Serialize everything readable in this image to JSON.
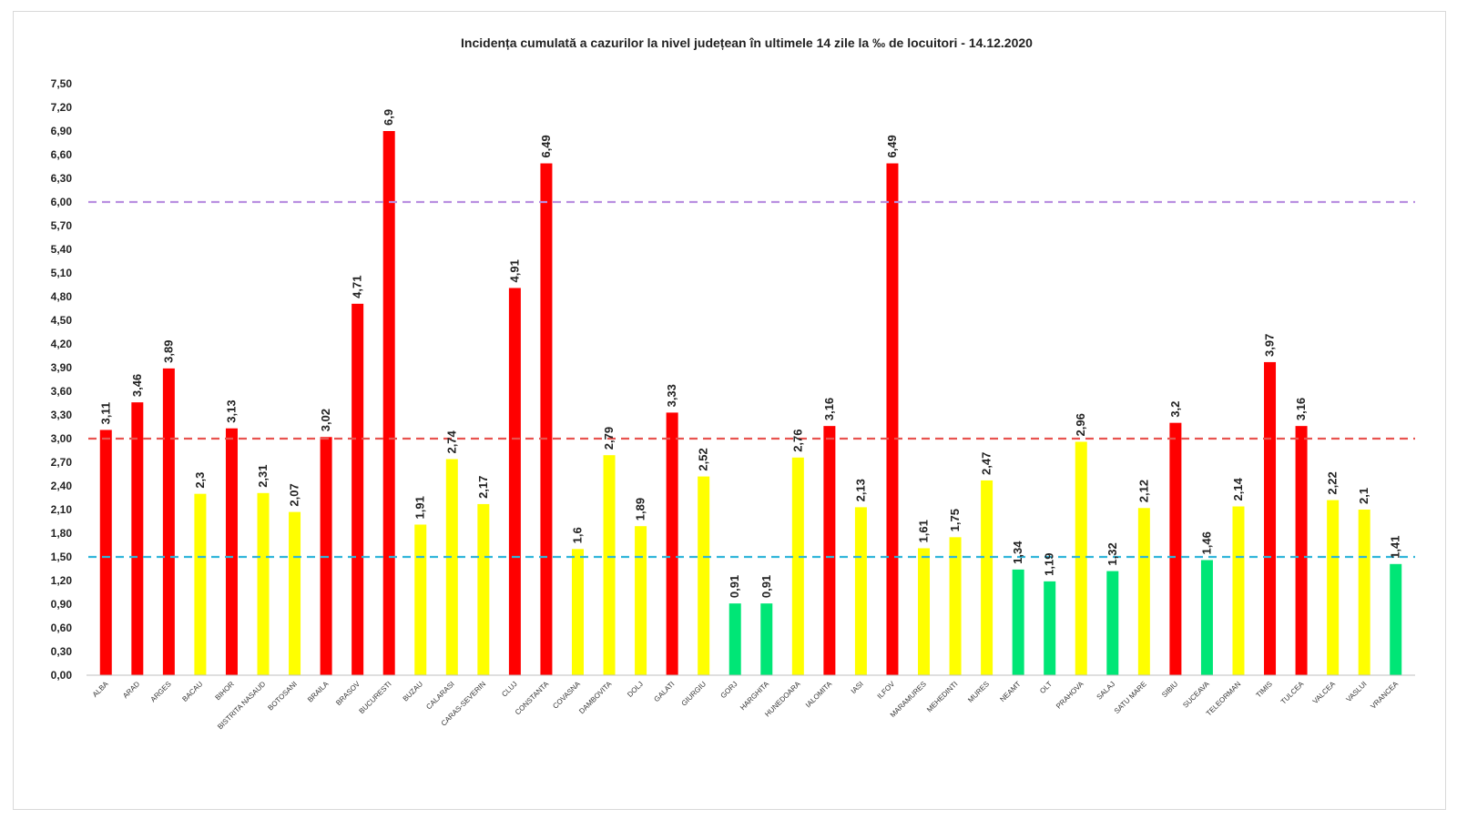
{
  "chart_data": {
    "type": "bar",
    "title": "Incidența cumulată a cazurilor la nivel județean în ultimele 14 zile   la ‰ de locuitori  - 14.12.2020",
    "xlabel": "",
    "ylabel": "",
    "ylim": [
      0,
      7.5
    ],
    "yticks": [
      "0,00",
      "0,30",
      "0,60",
      "0,90",
      "1,20",
      "1,50",
      "1,80",
      "2,10",
      "2,40",
      "2,70",
      "3,00",
      "3,30",
      "3,60",
      "3,90",
      "4,20",
      "4,50",
      "4,80",
      "5,10",
      "5,40",
      "5,70",
      "6,00",
      "6,30",
      "6,60",
      "6,90",
      "7,20",
      "7,50"
    ],
    "grid": false,
    "legend": "none",
    "categories": [
      "ALBA",
      "ARAD",
      "ARGES",
      "BACAU",
      "BIHOR",
      "BISTRITA NASAUD",
      "BOTOSANI",
      "BRAILA",
      "BRASOV",
      "BUCURESTI",
      "BUZAU",
      "CALARASI",
      "CARAS-SEVERIN",
      "CLUJ",
      "CONSTANTA",
      "COVASNA",
      "DAMBOVITA",
      "DOLJ",
      "GALATI",
      "GIURGIU",
      "GORJ",
      "HARGHITA",
      "HUNEDOARA",
      "IALOMITA",
      "IASI",
      "ILFOV",
      "MARAMURES",
      "MEHEDINTI",
      "MURES",
      "NEAMT",
      "OLT",
      "PRAHOVA",
      "SALAJ",
      "SATU MARE",
      "SIBIU",
      "SUCEAVA",
      "TELEORMAN",
      "TIMIS",
      "TULCEA",
      "VALCEA",
      "VASLUI",
      "VRANCEA"
    ],
    "values": [
      3.11,
      3.46,
      3.89,
      2.3,
      3.13,
      2.31,
      2.07,
      3.02,
      4.71,
      6.9,
      1.91,
      2.74,
      2.17,
      4.91,
      6.49,
      1.6,
      2.79,
      1.89,
      3.33,
      2.52,
      0.91,
      0.91,
      2.76,
      3.16,
      2.13,
      6.49,
      1.61,
      1.75,
      2.47,
      1.34,
      1.19,
      2.96,
      1.32,
      2.12,
      3.2,
      1.46,
      2.14,
      3.97,
      3.16,
      2.22,
      2.1,
      1.41
    ],
    "data_labels": [
      "3,11",
      "3,46",
      "3,89",
      "2,3",
      "3,13",
      "2,31",
      "2,07",
      "3,02",
      "4,71",
      "6,9",
      "1,91",
      "2,74",
      "2,17",
      "4,91",
      "6,49",
      "1,6",
      "2,79",
      "1,89",
      "3,33",
      "2,52",
      "0,91",
      "0,91",
      "2,76",
      "3,16",
      "2,13",
      "6,49",
      "1,61",
      "1,75",
      "2,47",
      "1,34",
      "1,19",
      "2,96",
      "1,32",
      "2,12",
      "3,2",
      "1,46",
      "2,14",
      "3,97",
      "3,16",
      "2,22",
      "2,1",
      "1,41"
    ],
    "bar_colors": {
      "above_3": "#ff0000",
      "between_1_5_and_3": "#ffff00",
      "below_1_5": "#00e676"
    },
    "reference_lines": [
      {
        "value": 6.0,
        "color": "#b98ee0"
      },
      {
        "value": 3.0,
        "color": "#e8534f"
      },
      {
        "value": 1.5,
        "color": "#2fb5d9"
      }
    ]
  }
}
